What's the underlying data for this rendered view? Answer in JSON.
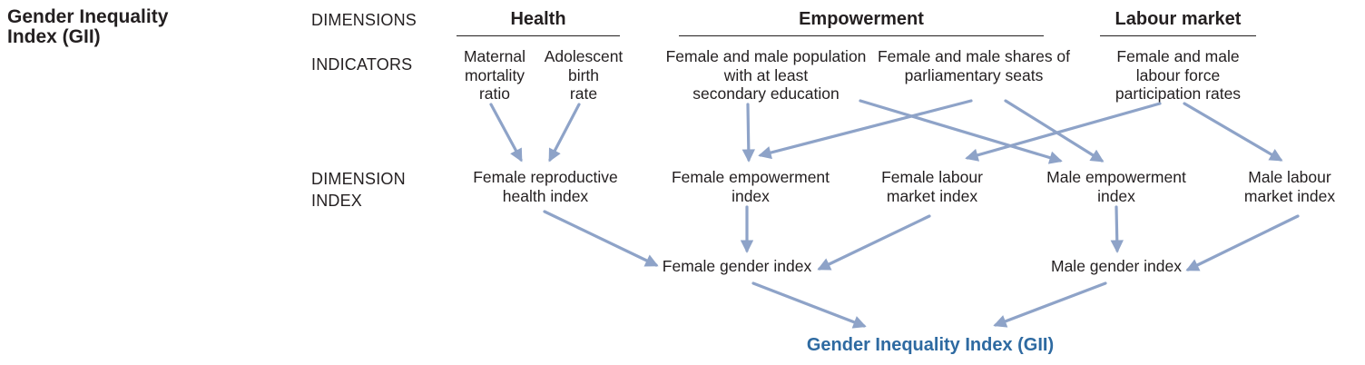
{
  "title": {
    "line1": "Gender Inequality",
    "line2": "Index (GII)"
  },
  "row_labels": {
    "dimensions": "DIMENSIONS",
    "indicators": "INDICATORS",
    "dimension_index_line1": "DIMENSION",
    "dimension_index_line2": "INDEX"
  },
  "dimensions": {
    "health": "Health",
    "empowerment": "Empowerment",
    "labour": "Labour market"
  },
  "indicators": {
    "maternal": [
      "Maternal",
      "mortality",
      "ratio"
    ],
    "adolescent": [
      "Adolescent",
      "birth",
      "rate"
    ],
    "education": [
      "Female and male population",
      "with at least",
      "secondary education"
    ],
    "parliament": [
      "Female and male shares of",
      "parliamentary seats"
    ],
    "labour_force": [
      "Female and male",
      "labour force",
      "participation rates"
    ]
  },
  "dimension_indices": {
    "female_reproductive": [
      "Female reproductive",
      "health index"
    ],
    "female_empowerment": [
      "Female empowerment",
      "index"
    ],
    "female_labour": [
      "Female labour",
      "market index"
    ],
    "male_empowerment": [
      "Male empowerment",
      "index"
    ],
    "male_labour": [
      "Male labour",
      "market index"
    ]
  },
  "gender_indices": {
    "female": "Female gender index",
    "male": "Male gender index"
  },
  "final_index": "Gender Inequality Index (GII)",
  "colors": {
    "arrow": "#8ea3c8",
    "final_text": "#2e6aa1",
    "text": "#231f20"
  }
}
